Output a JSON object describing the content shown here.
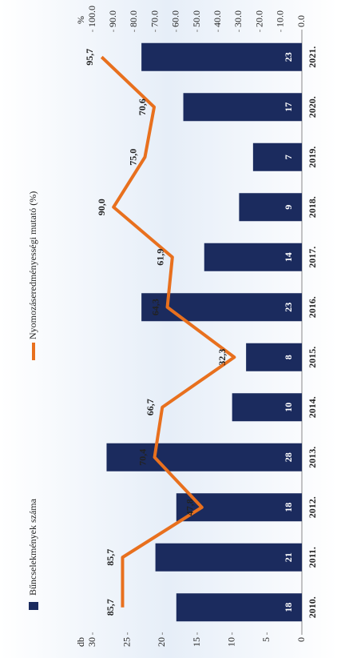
{
  "chart_data": {
    "type": "bar_line",
    "categories": [
      "2010.",
      "2011.",
      "2012.",
      "2013.",
      "2014.",
      "2015.",
      "2016.",
      "2017.",
      "2018.",
      "2019.",
      "2020.",
      "2021."
    ],
    "series": [
      {
        "name": "Bűncselekmények száma",
        "color": "#1b2b5e",
        "type": "bar",
        "values": [
          18,
          21,
          18,
          28,
          10,
          8,
          23,
          14,
          9,
          7,
          17,
          23
        ]
      },
      {
        "name": "Nyomozáseredményességi mutató (%)",
        "color": "#e8701e",
        "type": "line",
        "axis": "y2",
        "values": [
          85.7,
          85.7,
          47.8,
          70.4,
          66.7,
          32.3,
          64.3,
          61.9,
          90.0,
          75.0,
          70.6,
          95.7
        ],
        "value_labels": [
          "85,7",
          "85,7",
          "47,8",
          "70,4",
          "66,7",
          "32,3",
          "64,3",
          "61,9",
          "90,0",
          "75,0",
          "70,6",
          "95,7"
        ]
      }
    ],
    "ylabel": "db",
    "y2label": "%",
    "ylim": [
      0,
      30
    ],
    "yticks": [
      0,
      5,
      10,
      15,
      20,
      25,
      30
    ],
    "y2lim": [
      0,
      100
    ],
    "y2ticks": [
      {
        "value": 0,
        "label": "0.0"
      },
      {
        "value": 10,
        "label": "10.0"
      },
      {
        "value": 20,
        "label": "20.0"
      },
      {
        "value": 30,
        "label": "30.0"
      },
      {
        "value": 40,
        "label": "40.0"
      },
      {
        "value": 50,
        "label": "50.0"
      },
      {
        "value": 60,
        "label": "60.0"
      },
      {
        "value": 70,
        "label": "70.0"
      },
      {
        "value": 80,
        "label": "80.0"
      },
      {
        "value": 90,
        "label": "90.0"
      },
      {
        "value": 100,
        "label": "100.0"
      }
    ],
    "rotation": -90
  }
}
